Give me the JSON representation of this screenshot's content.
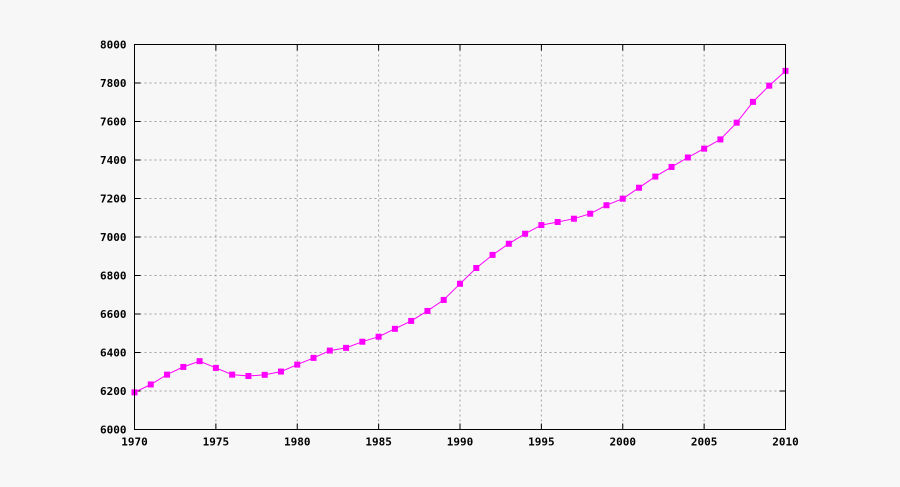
{
  "chart_data": {
    "type": "line",
    "title": "",
    "xlabel": "",
    "ylabel": "",
    "xlim": [
      1970,
      2010
    ],
    "ylim": [
      6000,
      8000
    ],
    "x_ticks": [
      "1970",
      "1975",
      "1980",
      "1985",
      "1990",
      "1995",
      "2000",
      "2005",
      "2010"
    ],
    "y_ticks": [
      "6000",
      "6200",
      "6400",
      "6600",
      "6800",
      "7000",
      "7200",
      "7400",
      "7600",
      "7800",
      "8000"
    ],
    "grid": true,
    "legend": "none",
    "series": [
      {
        "color": "#ff00ff",
        "marker": "square",
        "x": [
          1970,
          1971,
          1972,
          1973,
          1974,
          1975,
          1976,
          1977,
          1978,
          1979,
          1980,
          1981,
          1982,
          1983,
          1984,
          1985,
          1986,
          1987,
          1988,
          1989,
          1990,
          1991,
          1992,
          1993,
          1994,
          1995,
          1996,
          1997,
          1998,
          1999,
          2000,
          2001,
          2002,
          2003,
          2004,
          2005,
          2006,
          2007,
          2008,
          2009,
          2010
        ],
        "values": [
          6193,
          6234,
          6285,
          6325,
          6355,
          6320,
          6285,
          6278,
          6284,
          6301,
          6337,
          6372,
          6410,
          6424,
          6456,
          6482,
          6523,
          6564,
          6616,
          6673,
          6757,
          6839,
          6907,
          6965,
          7017,
          7062,
          7078,
          7095,
          7121,
          7165,
          7199,
          7256,
          7314,
          7364,
          7413,
          7459,
          7507,
          7594,
          7702,
          7786,
          7863
        ]
      }
    ]
  }
}
